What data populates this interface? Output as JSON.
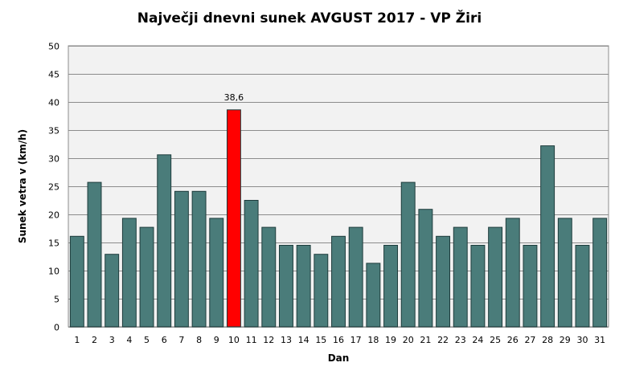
{
  "chart_data": {
    "type": "bar",
    "title": "Največji dnevni sunek AVGUST 2017 - VP Žiri",
    "xlabel": "Dan",
    "ylabel": "Sunek vetra v (km/h)",
    "ylim": [
      0,
      50
    ],
    "yticks": [
      0,
      5,
      10,
      15,
      20,
      25,
      30,
      35,
      40,
      45,
      50
    ],
    "grid": true,
    "legend": "none",
    "categories": [
      "1",
      "2",
      "3",
      "4",
      "5",
      "6",
      "7",
      "8",
      "9",
      "10",
      "11",
      "12",
      "13",
      "14",
      "15",
      "16",
      "17",
      "18",
      "19",
      "20",
      "21",
      "22",
      "23",
      "24",
      "25",
      "26",
      "27",
      "28",
      "29",
      "30",
      "31"
    ],
    "values": [
      16.1,
      25.7,
      12.9,
      19.3,
      17.7,
      30.6,
      24.1,
      24.1,
      19.3,
      38.6,
      22.5,
      17.7,
      14.5,
      14.5,
      12.9,
      16.1,
      17.7,
      11.3,
      14.5,
      25.7,
      20.9,
      16.1,
      17.7,
      14.5,
      17.7,
      19.3,
      14.5,
      32.2,
      19.3,
      14.5,
      19.3
    ],
    "highlight_index": 9,
    "data_labels": [
      {
        "index": 9,
        "text": "38,6"
      }
    ],
    "colors": {
      "bar": "#4a7c7a",
      "highlight": "#ff0000",
      "bar_edge": "#1e3c3c",
      "plot_bg": "#f2f2f2",
      "grid": "#8c8c8c"
    }
  }
}
